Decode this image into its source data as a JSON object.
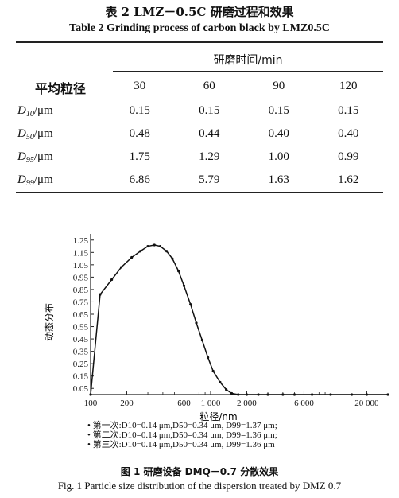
{
  "table": {
    "caption_cn": "表 2   LMZ－0.5C 研磨过程和效果",
    "caption_en": "Table 2   Grinding process of carbon black by LMZ0.5C",
    "row_header": "平均粒径",
    "time_header": "研磨时间/min",
    "times": [
      "30",
      "60",
      "90",
      "120"
    ],
    "rows": [
      {
        "sym": "D",
        "sub": "10",
        "unit": "/μm",
        "values": [
          "0.15",
          "0.15",
          "0.15",
          "0.15"
        ]
      },
      {
        "sym": "D",
        "sub": "50",
        "unit": "/μm",
        "values": [
          "0.48",
          "0.44",
          "0.40",
          "0.40"
        ]
      },
      {
        "sym": "D",
        "sub": "95",
        "unit": "/μm",
        "values": [
          "1.75",
          "1.29",
          "1.00",
          "0.99"
        ]
      },
      {
        "sym": "D",
        "sub": "99",
        "unit": "/μm",
        "values": [
          "6.86",
          "5.79",
          "1.63",
          "1.62"
        ]
      }
    ]
  },
  "figure": {
    "caption_cn": "图 1   研磨设备 DMQ－0.7 分散效果",
    "caption_en": "Fig. 1   Particle size distribution of the dispersion treated by DMZ 0.7",
    "legend": [
      "第一次:D10=0.14 μm,D50=0.34 μm, D99=1.37 μm;",
      "第二次:D10=0.14 μm,D50=0.34 μm, D99=1.36 μm;",
      "第三次:D10=0.14 μm,D50=0.34 μm, D99=1.36 μm"
    ]
  },
  "chart_data": {
    "type": "line",
    "title": "",
    "xlabel": "粒径/nm",
    "ylabel": "动态分布",
    "xscale": "log",
    "xlim": [
      100,
      30000
    ],
    "ylim": [
      0,
      1.3
    ],
    "x_ticks": [
      "100",
      "200",
      "600",
      "1 000",
      "2 000",
      "6 000",
      "20 000"
    ],
    "y_ticks": [
      "0.05",
      "0.15",
      "0.25",
      "0.35",
      "0.45",
      "0.55",
      "0.65",
      "0.75",
      "0.85",
      "0.95",
      "1.05",
      "1.15",
      "1.25"
    ],
    "series": [
      {
        "x": [
          100,
          120,
          150,
          180,
          220,
          260,
          300,
          340,
          380,
          430,
          480,
          540,
          600,
          680,
          760,
          850,
          950,
          1050,
          1200,
          1350,
          1500,
          1700,
          2000,
          2500,
          3000,
          4000,
          5000,
          7000,
          10000,
          15000,
          20000,
          30000
        ],
        "y": [
          0.0,
          0.81,
          0.93,
          1.03,
          1.11,
          1.16,
          1.2,
          1.21,
          1.2,
          1.16,
          1.1,
          1.0,
          0.88,
          0.73,
          0.58,
          0.44,
          0.3,
          0.19,
          0.1,
          0.04,
          0.01,
          0.0,
          0.0,
          0.0,
          0.0,
          0.0,
          0.0,
          0.0,
          0.0,
          0.0,
          0.0,
          0.0
        ]
      }
    ]
  }
}
